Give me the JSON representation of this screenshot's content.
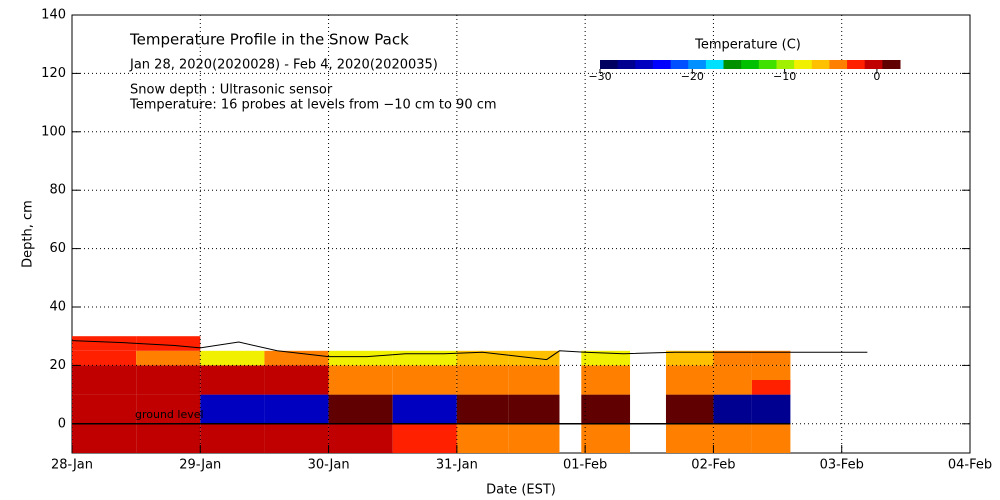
{
  "chart_data": {
    "type": "heatmap",
    "title": "Temperature Profile in the Snow Pack",
    "subtitle": "Jan 28, 2020(2020028) - Feb  4, 2020(2020035)",
    "notes": [
      "Snow depth : Ultrasonic sensor",
      "Temperature: 16 probes at levels from −10 cm to 90 cm"
    ],
    "annotation": "ground level",
    "xlabel": "Date (EST)",
    "ylabel": "Depth, cm",
    "xlim": [
      0,
      7
    ],
    "xticks": [
      {
        "value": 0,
        "label": "28-Jan"
      },
      {
        "value": 1,
        "label": "29-Jan"
      },
      {
        "value": 2,
        "label": "30-Jan"
      },
      {
        "value": 3,
        "label": "31-Jan"
      },
      {
        "value": 4,
        "label": "01-Feb"
      },
      {
        "value": 5,
        "label": "02-Feb"
      },
      {
        "value": 6,
        "label": "03-Feb"
      },
      {
        "value": 7,
        "label": "04-Feb"
      }
    ],
    "ylim": [
      -10,
      140
    ],
    "yticks": [
      0,
      20,
      40,
      60,
      80,
      100,
      120,
      140
    ],
    "grid": true,
    "x_edges": [
      0,
      0.5,
      1.0,
      1.5,
      2.0,
      2.5,
      3.0,
      3.4,
      3.8,
      3.97,
      4.35,
      4.63,
      5.0,
      5.3,
      5.6
    ],
    "y_edges": [
      -10,
      0,
      10,
      15,
      20,
      25,
      30
    ],
    "values": [
      [
        -1.2,
        -1.2,
        -1.2,
        -1.2,
        -1.2,
        -1.5,
        -3.5,
        -3.5,
        null,
        -3.5,
        null,
        -3.5,
        -3.5,
        -3.5
      ],
      [
        -1.2,
        -1.2,
        -25,
        -25,
        1.5,
        -25,
        1.5,
        1.5,
        null,
        1.5,
        null,
        1.5,
        -28,
        -28
      ],
      [
        -1.2,
        -1.2,
        -1.2,
        -1.2,
        -3.5,
        -3.5,
        -3.5,
        -3.5,
        null,
        -3.5,
        null,
        -3.5,
        -3.5,
        -1.5
      ],
      [
        -1.2,
        -1.2,
        -1.2,
        -1.2,
        -5,
        -5,
        -5,
        -5,
        null,
        -5,
        null,
        -5,
        -3.5,
        -3.5
      ],
      [
        -1.5,
        -3.5,
        -8,
        -3.5,
        -8,
        -8,
        -6,
        -6,
        null,
        -8,
        null,
        -6,
        -5,
        -5
      ],
      [
        -2.5,
        -2.5,
        null,
        null,
        null,
        null,
        null,
        null,
        null,
        null,
        null,
        null,
        null,
        null
      ]
    ],
    "colorbar": {
      "label": "Temperature (C)",
      "lim": [
        -30,
        2.5
      ],
      "ticks": [
        {
          "value": -30,
          "label": "−30"
        },
        {
          "value": -20,
          "label": "−20"
        },
        {
          "value": -10,
          "label": "−10"
        },
        0
      ],
      "colors": [
        "#000060",
        "#000090",
        "#0000c0",
        "#0000ff",
        "#0050ff",
        "#0090ff",
        "#00e0ff",
        "#009000",
        "#00c000",
        "#40e000",
        "#a0f000",
        "#f0f000",
        "#ffc000",
        "#ff8000",
        "#ff2000",
        "#c00000",
        "#600000"
      ]
    },
    "snow_depth": {
      "color": "#000000",
      "x": [
        0,
        0.4,
        0.8,
        1.0,
        1.3,
        1.6,
        2.0,
        2.3,
        2.6,
        2.9,
        3.2,
        3.5,
        3.7,
        3.8,
        4.0,
        4.3,
        4.7,
        5.0,
        5.5,
        6.0,
        6.2
      ],
      "y": [
        28.5,
        27.8,
        26.8,
        26,
        28,
        25,
        23,
        23,
        24,
        24,
        24.5,
        23,
        22,
        25,
        24.5,
        24,
        24.5,
        24.5,
        24.5,
        24.5,
        24.5
      ]
    }
  }
}
